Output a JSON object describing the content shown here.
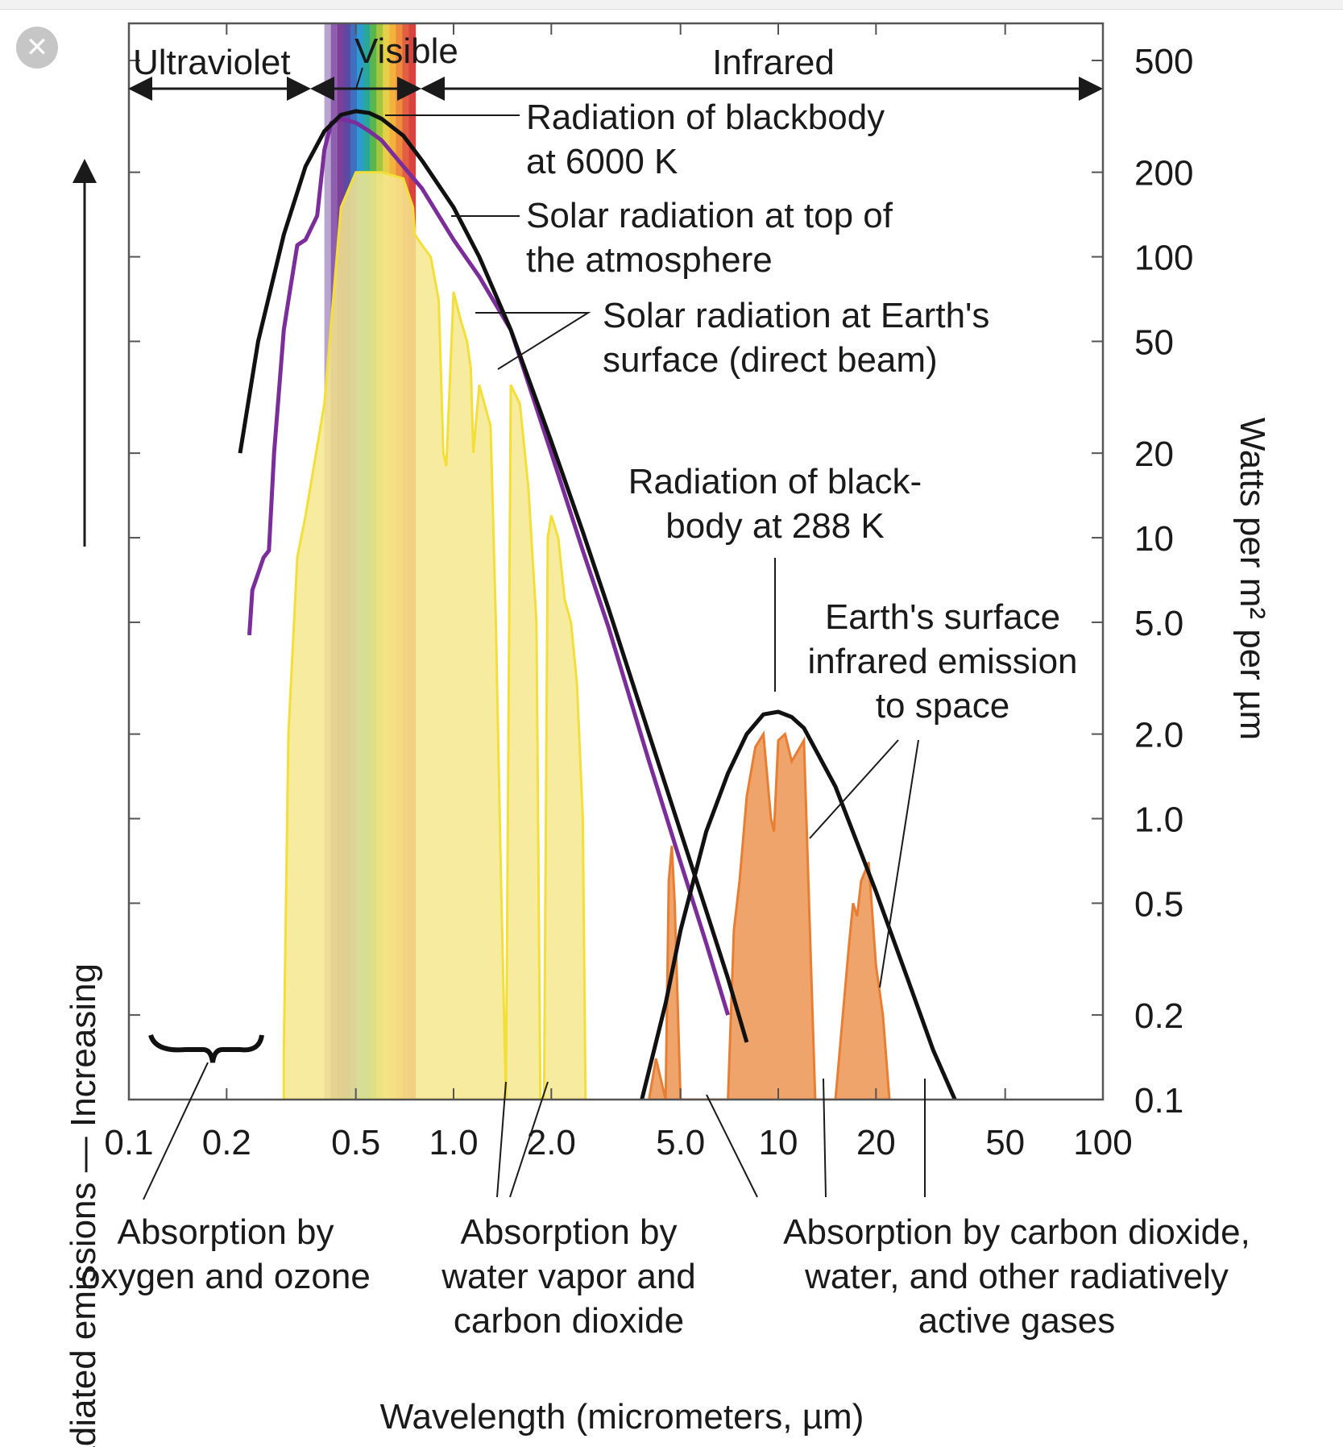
{
  "window": {
    "close_icon": "close-icon"
  },
  "chart_data": {
    "type": "line",
    "x_scale": "log",
    "y_scale": "log",
    "xlabel": "Wavelength (micrometers, µm)",
    "ylabel_left": "Radiated emissions — Increasing",
    "ylabel_right": "Watts per m² per µm",
    "xlim": [
      0.1,
      100
    ],
    "ylim": [
      0.1,
      500
    ],
    "x_ticks": [
      0.1,
      0.2,
      0.5,
      1.0,
      2.0,
      5.0,
      10,
      20,
      50,
      100
    ],
    "x_tick_labels": [
      "0.1",
      "0.2",
      "0.5",
      "1.0",
      "2.0",
      "5.0",
      "10",
      "20",
      "50",
      "100"
    ],
    "y_ticks": [
      500,
      200,
      100,
      50,
      20,
      10,
      5.0,
      2.0,
      1.0,
      0.5,
      0.2,
      0.1
    ],
    "y_tick_labels": [
      "500",
      "200",
      "100",
      "50",
      "20",
      "10",
      "5.0",
      "2.0",
      "1.0",
      "0.5",
      "0.2",
      "0.1"
    ],
    "regions": [
      {
        "label": "Ultraviolet",
        "range": [
          0.1,
          0.4
        ]
      },
      {
        "label": "Visible",
        "range": [
          0.4,
          0.7
        ]
      },
      {
        "label": "Infrared",
        "range": [
          0.7,
          100
        ]
      }
    ],
    "spectrum_colors": [
      "#b9a3cf",
      "#8d5fae",
      "#7b3f97",
      "#5a4aa3",
      "#3f6fc0",
      "#2c9bd1",
      "#2aa79a",
      "#5ab54a",
      "#a6c53f",
      "#e6d04a",
      "#f3b23e",
      "#ee8b3c",
      "#e35f44",
      "#d8433f"
    ],
    "series": [
      {
        "name": "Radiation of blackbody at 6000 K",
        "color": "#111111",
        "x": [
          0.22,
          0.25,
          0.3,
          0.35,
          0.4,
          0.45,
          0.5,
          0.55,
          0.6,
          0.7,
          0.8,
          1.0,
          1.2,
          1.5,
          2.0,
          2.5,
          3.0,
          4.0,
          5.0,
          6.0,
          7.0,
          8.0
        ],
        "y": [
          20,
          50,
          120,
          210,
          280,
          320,
          330,
          325,
          310,
          270,
          220,
          150,
          100,
          55,
          22,
          10.5,
          5.6,
          2.0,
          0.9,
          0.47,
          0.27,
          0.16
        ]
      },
      {
        "name": "Solar radiation at top of the atmosphere",
        "color": "#7b2d9a",
        "x": [
          0.235,
          0.24,
          0.26,
          0.27,
          0.28,
          0.3,
          0.31,
          0.33,
          0.35,
          0.38,
          0.4,
          0.42,
          0.45,
          0.5,
          0.55,
          0.6,
          0.7,
          0.8,
          1.0,
          1.2,
          1.5,
          2.0,
          2.5,
          3.0,
          4.0,
          5.0,
          6.0,
          7.0
        ],
        "y": [
          4.5,
          6.5,
          8.5,
          9,
          20,
          55,
          70,
          110,
          115,
          140,
          240,
          300,
          310,
          300,
          280,
          260,
          210,
          175,
          115,
          85,
          55,
          20,
          9,
          4.8,
          1.6,
          0.7,
          0.36,
          0.2
        ]
      },
      {
        "name": "Solar radiation at Earth's surface (direct beam)",
        "color": "#f6e88f",
        "x": [
          0.3,
          0.31,
          0.33,
          0.35,
          0.4,
          0.45,
          0.5,
          0.6,
          0.7,
          0.75,
          0.76,
          0.8,
          0.85,
          0.9,
          0.93,
          0.95,
          1.0,
          1.05,
          1.1,
          1.13,
          1.15,
          1.2,
          1.3,
          1.35,
          1.4,
          1.45,
          1.5,
          1.6,
          1.7,
          1.8,
          1.85,
          1.9,
          1.95,
          2.0,
          2.1,
          2.2,
          2.3,
          2.4,
          2.5,
          2.55
        ],
        "y": [
          0.15,
          2.0,
          8.5,
          12,
          30,
          150,
          200,
          200,
          190,
          150,
          120,
          110,
          100,
          70,
          20,
          18,
          75,
          60,
          50,
          40,
          20,
          35,
          25,
          5,
          0.6,
          0.1,
          35,
          30,
          15,
          5,
          0.1,
          0.1,
          10,
          12,
          10,
          6,
          5,
          3,
          1,
          0.1
        ]
      },
      {
        "name": "Radiation of blackbody at 288 K",
        "color": "#111111",
        "x": [
          3.8,
          4.5,
          5.0,
          6.0,
          7.0,
          8.0,
          9.0,
          10.0,
          11.0,
          12.0,
          15.0,
          20.0,
          25.0,
          30.0,
          35.0
        ],
        "y": [
          0.1,
          0.22,
          0.4,
          0.9,
          1.45,
          2.0,
          2.35,
          2.4,
          2.3,
          2.1,
          1.3,
          0.55,
          0.27,
          0.15,
          0.1
        ]
      },
      {
        "name": "Earth's surface infrared emission to space",
        "color": "#ec9a5a",
        "x": [
          4.0,
          4.2,
          4.5,
          4.6,
          4.7,
          4.8,
          5.0,
          5.3,
          7.0,
          7.3,
          7.6,
          8.0,
          8.5,
          9.0,
          9.5,
          9.7,
          10.0,
          10.5,
          11.0,
          12.0,
          13.0,
          13.5,
          15.0,
          16.5,
          17.0,
          17.5,
          18.0,
          19.0,
          20.0,
          21.0,
          22.0
        ],
        "y": [
          0.1,
          0.14,
          0.1,
          0.6,
          0.8,
          0.5,
          0.1,
          0.1,
          0.1,
          0.4,
          0.6,
          1.2,
          1.8,
          2.0,
          1.0,
          0.9,
          1.9,
          2.0,
          1.6,
          1.9,
          0.1,
          0.1,
          0.1,
          0.35,
          0.5,
          0.45,
          0.6,
          0.7,
          0.3,
          0.2,
          0.1
        ]
      }
    ],
    "annotations": {
      "bb6000": [
        "Radiation of blackbody",
        "at 6000 K"
      ],
      "solar_top": [
        "Solar radiation at top of",
        "the atmosphere"
      ],
      "solar_surface": [
        "Solar radiation at Earth's",
        "surface (direct beam)"
      ],
      "bb288": [
        "Radiation of black-",
        "body at 288 K"
      ],
      "earth_ir": [
        "Earth's surface",
        "infrared emission",
        "to space"
      ],
      "abs_o2_o3": [
        "Absorption by",
        "oxygen and ozone"
      ],
      "abs_h2o_co2": [
        "Absorption by",
        "water vapor and",
        "carbon dioxide"
      ],
      "abs_co2_h2o_other": [
        "Absorption by carbon dioxide,",
        "water, and other radiatively",
        "active gases"
      ]
    }
  }
}
